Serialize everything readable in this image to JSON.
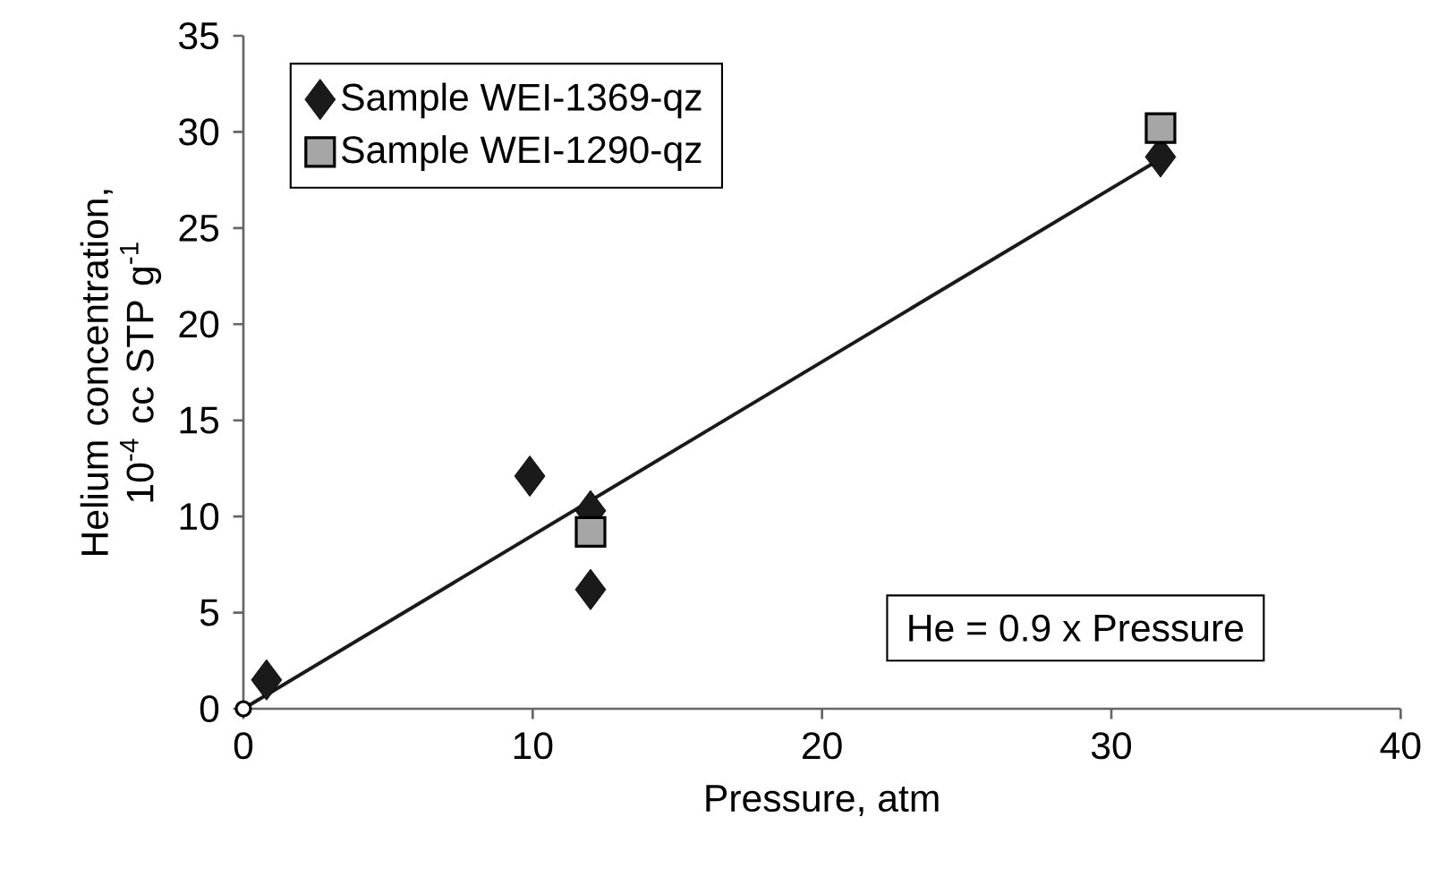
{
  "chart_data": {
    "type": "scatter",
    "xlabel": "Pressure, atm",
    "ylabel": "Helium concentration, 10$^{-4}$ cc  STP g$^{-1}$",
    "xlim": [
      0,
      40
    ],
    "ylim": [
      0,
      35
    ],
    "xticks": [
      0,
      10,
      20,
      30,
      40
    ],
    "yticks": [
      0,
      5,
      10,
      15,
      20,
      25,
      30,
      35
    ],
    "grid": false,
    "legend": "top left",
    "series": [
      {
        "name": "Sample WEI-1369-qz",
        "marker": "diamond",
        "color": "#1a1a1a",
        "x": [
          0.8,
          9.9,
          12,
          12,
          31.7
        ],
        "values": [
          1.5,
          12.1,
          10.3,
          6.2,
          28.7
        ]
      },
      {
        "name": "Sample WEI-1290-qz",
        "marker": "square",
        "color": "#a6a6a6",
        "x": [
          12,
          31.7
        ],
        "values": [
          9.2,
          30.2
        ]
      },
      {
        "type": "line",
        "marker": "none",
        "color": "#1a1a1a",
        "x": [
          0,
          31.7
        ],
        "values": [
          0,
          28.6
        ]
      },
      {
        "marker": "circle",
        "color": "#ffffff",
        "x": [
          0
        ],
        "values": [
          0
        ]
      }
    ],
    "annotations": [
      "He = 0.9 x Pressure"
    ]
  }
}
